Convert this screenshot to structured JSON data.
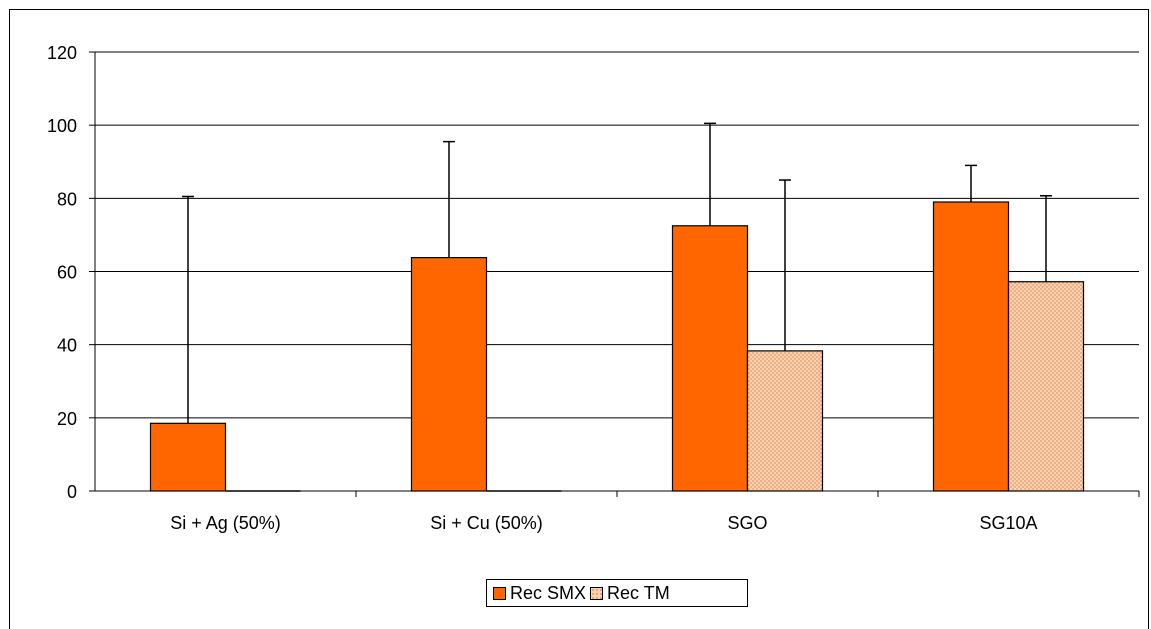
{
  "chart_data": {
    "type": "bar",
    "categories": [
      "Si + Ag (50%)",
      "Si + Cu (50%)",
      "SGO",
      "SG10A"
    ],
    "series": [
      {
        "name": "Rec SMX",
        "values": [
          18.5,
          63.8,
          72.5,
          79
        ],
        "error_upper": [
          80.5,
          95.5,
          100.5,
          89
        ],
        "color": "#FF6600",
        "pattern": "solid"
      },
      {
        "name": "Rec TM",
        "values": [
          0,
          0,
          38.3,
          57.2
        ],
        "error_upper": [
          null,
          null,
          85,
          80.7
        ],
        "color": "#F4B183",
        "pattern": "dotted"
      }
    ],
    "ylim": [
      0,
      120
    ],
    "yticks": [
      "0",
      "20",
      "40",
      "60",
      "80",
      "100",
      "120"
    ],
    "grid": true,
    "legend_position": "bottom"
  }
}
